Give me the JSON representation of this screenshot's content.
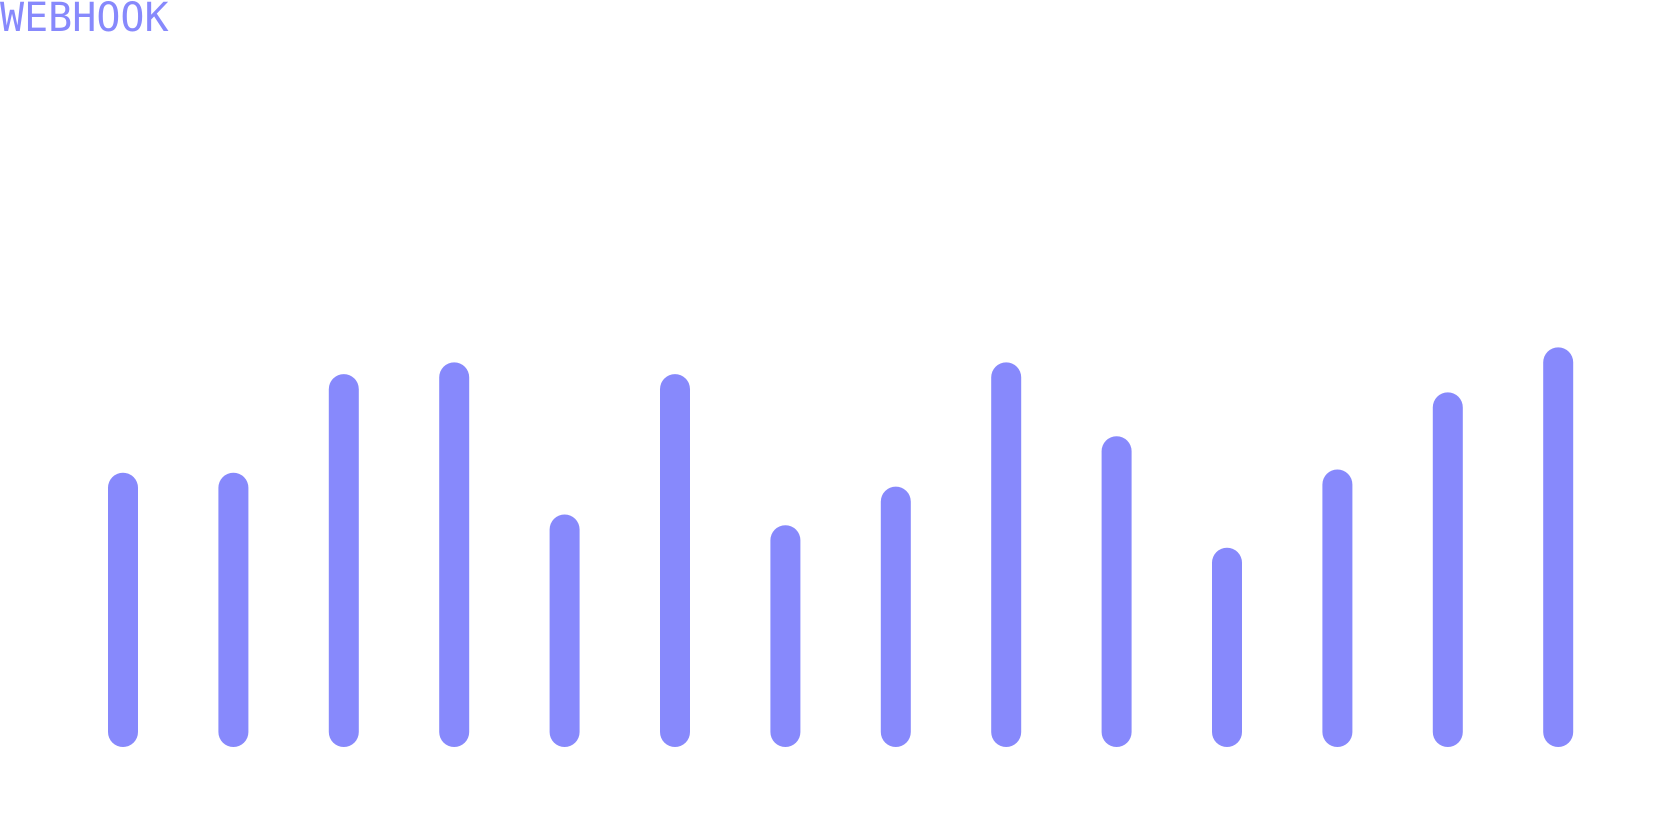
{
  "chart_data": {
    "type": "bar",
    "title": "WEBHOOK",
    "values": [
      228,
      228,
      320,
      331,
      189,
      320,
      179,
      215,
      331,
      262,
      158,
      231,
      303,
      345
    ],
    "color": "#8789fc",
    "ylim": [
      0,
      392
    ],
    "grid": false
  }
}
